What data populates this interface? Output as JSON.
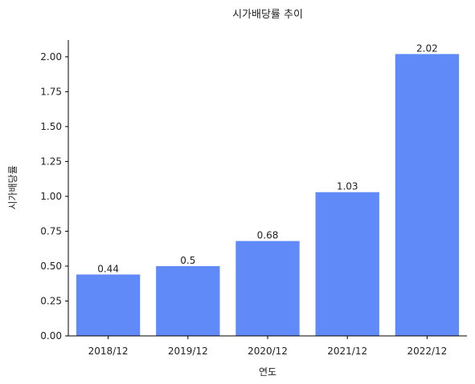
{
  "chart_data": {
    "type": "bar",
    "title": "시가배당률 추이",
    "xlabel": "연도",
    "ylabel": "시가배당률",
    "categories": [
      "2018/12",
      "2019/12",
      "2020/12",
      "2021/12",
      "2022/12"
    ],
    "values": [
      0.44,
      0.5,
      0.68,
      1.03,
      2.02
    ],
    "data_labels": [
      "0.44",
      "0.5",
      "0.68",
      "1.03",
      "2.02"
    ],
    "ylim": [
      0,
      2.12
    ],
    "yticks": [
      0.0,
      0.25,
      0.5,
      0.75,
      1.0,
      1.25,
      1.5,
      1.75,
      2.0
    ],
    "ytick_labels": [
      "0.00",
      "0.25",
      "0.50",
      "0.75",
      "1.00",
      "1.25",
      "1.50",
      "1.75",
      "2.00"
    ],
    "bar_color": "#5f8af7",
    "grid": false,
    "legend": "none"
  }
}
